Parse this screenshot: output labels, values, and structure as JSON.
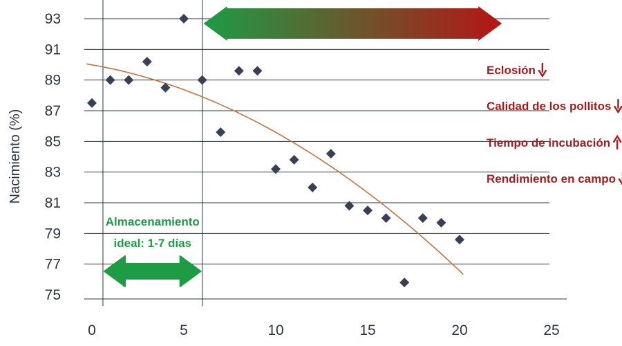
{
  "colors": {
    "grid": "#2b3440",
    "point": "#3a3f55",
    "trend": "#c8703f",
    "effect_text": "#a61b1b",
    "storage": "#1d9c45",
    "arrow_start": "#1d9c45",
    "arrow_end": "#b51515"
  },
  "chart_data": {
    "type": "scatter",
    "title": "",
    "xlabel": "",
    "ylabel": "Nacimiento (%)",
    "xlim": [
      0,
      25
    ],
    "ylim": [
      75,
      93
    ],
    "x_ticks": [
      0,
      5,
      10,
      15,
      20,
      25
    ],
    "y_ticks": [
      75,
      77,
      79,
      81,
      83,
      85,
      87,
      89,
      91,
      93
    ],
    "grid": "horizontal",
    "series": [
      {
        "points": [
          [
            0,
            87.5
          ],
          [
            1,
            89
          ],
          [
            2,
            89
          ],
          [
            3,
            90.2
          ],
          [
            4,
            88.5
          ],
          [
            5,
            93
          ],
          [
            6,
            89
          ],
          [
            7,
            85.6
          ],
          [
            8,
            89.6
          ],
          [
            9,
            89.6
          ],
          [
            10,
            83.2
          ],
          [
            11,
            83.8
          ],
          [
            12,
            82
          ],
          [
            13,
            84.2
          ],
          [
            14,
            80.8
          ],
          [
            15,
            80.5
          ],
          [
            16,
            80
          ],
          [
            17,
            75.8
          ],
          [
            18,
            80
          ],
          [
            19,
            79.7
          ],
          [
            20,
            78.6
          ]
        ]
      }
    ],
    "trend_line": {
      "type": "quadratic",
      "x_range": [
        -0.3,
        20.2
      ]
    },
    "reference_lines_x": [
      0.6,
      6
    ],
    "annotations": {
      "storage": {
        "line1": "Almacenamiento",
        "line2": "ideal: 1-7 días",
        "x_range": [
          0.6,
          6
        ]
      },
      "gradient_arrow": {
        "x_range": [
          6,
          22.3
        ]
      },
      "effects": [
        {
          "label": "Eclosión",
          "direction": "down"
        },
        {
          "label": "Calidad de los pollitos",
          "direction": "down"
        },
        {
          "label": "Tiempo de incubación",
          "direction": "up"
        },
        {
          "label": "Rendimiento en campo",
          "direction": "down"
        }
      ]
    }
  }
}
